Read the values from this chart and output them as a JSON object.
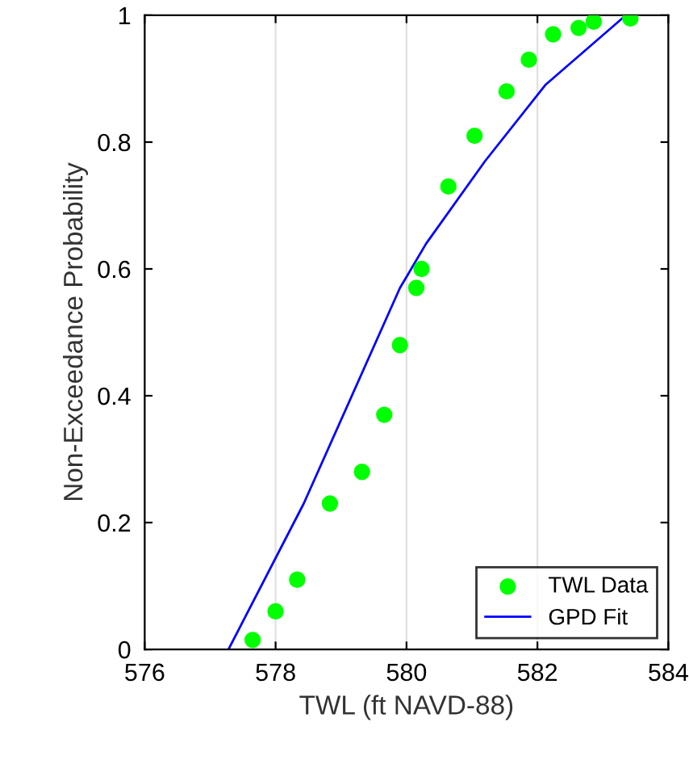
{
  "chart_data": {
    "type": "scatter",
    "xlabel": "TWL (ft NAVD-88)",
    "ylabel": "Non-Exceedance Probability",
    "xlim": [
      576,
      584
    ],
    "ylim": [
      0,
      1
    ],
    "xticks": [
      576,
      578,
      580,
      582,
      584
    ],
    "yticks": [
      0,
      0.2,
      0.4,
      0.6,
      0.8,
      1
    ],
    "grid": "x",
    "legend": "bottom right",
    "series": [
      {
        "name": "TWL Data",
        "marker": "circle",
        "color": "#00ff00",
        "x": [
          577.65,
          578.0,
          578.33,
          578.83,
          579.32,
          579.66,
          579.9,
          580.15,
          580.23,
          580.64,
          581.04,
          581.53,
          581.87,
          582.24,
          582.63,
          582.86,
          583.42
        ],
        "values": [
          0.015,
          0.06,
          0.11,
          0.23,
          0.28,
          0.37,
          0.48,
          0.57,
          0.6,
          0.73,
          0.81,
          0.88,
          0.93,
          0.97,
          0.98,
          0.99,
          0.995
        ]
      },
      {
        "name": "GPD Fit",
        "type": "line",
        "marker": "none",
        "color": "#0000ff",
        "x": [
          577.28,
          578.43,
          579.9,
          580.3,
          581.2,
          582.12,
          583.35
        ],
        "values": [
          0,
          0.23,
          0.57,
          0.64,
          0.77,
          0.89,
          1.0
        ]
      }
    ]
  }
}
